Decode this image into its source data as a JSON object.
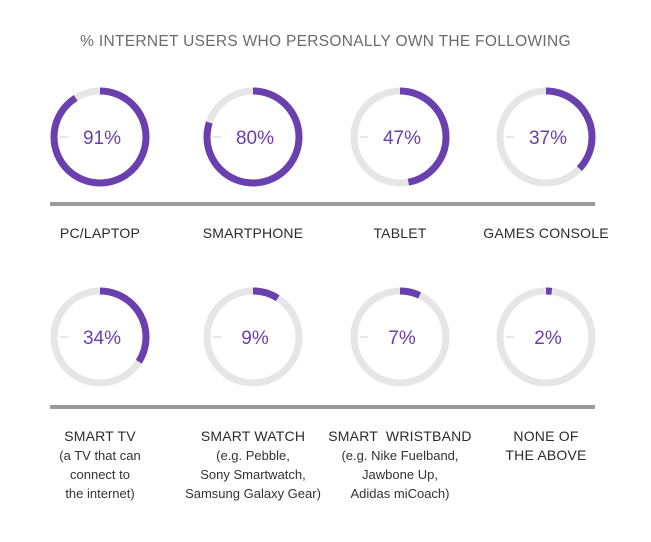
{
  "title": "% INTERNET USERS WHO PERSONALLY OWN THE FOLLOWING",
  "colors": {
    "accent": "#6a3fae",
    "track": "#e6e6e6",
    "divider": "#9a9a9a"
  },
  "chart_data": {
    "type": "pie",
    "title": "% INTERNET USERS WHO PERSONALLY OWN THE FOLLOWING",
    "unit": "%",
    "items": [
      {
        "label": "PC/LAPTOP",
        "sub": [],
        "value": 91,
        "display": "91%"
      },
      {
        "label": "SMARTPHONE",
        "sub": [],
        "value": 80,
        "display": "80%"
      },
      {
        "label": "TABLET",
        "sub": [],
        "value": 47,
        "display": "47%"
      },
      {
        "label": "GAMES CONSOLE",
        "sub": [],
        "value": 37,
        "display": "37%"
      },
      {
        "label": "SMART TV",
        "sub": [
          "(a TV that can",
          "connect to",
          "the internet)"
        ],
        "value": 34,
        "display": "34%"
      },
      {
        "label": "SMART WATCH",
        "sub": [
          "(e.g. Pebble,",
          "Sony Smartwatch,",
          "Samsung Galaxy Gear)"
        ],
        "value": 9,
        "display": "9%"
      },
      {
        "label": "SMART  WRISTBAND",
        "sub": [
          "(e.g. Nike Fuelband,",
          "Jawbone Up,",
          "Adidas miCoach)"
        ],
        "value": 7,
        "display": "7%"
      },
      {
        "label": "NONE OF THE ABOVE",
        "sub": [],
        "value": 2,
        "display": "2%"
      }
    ]
  }
}
